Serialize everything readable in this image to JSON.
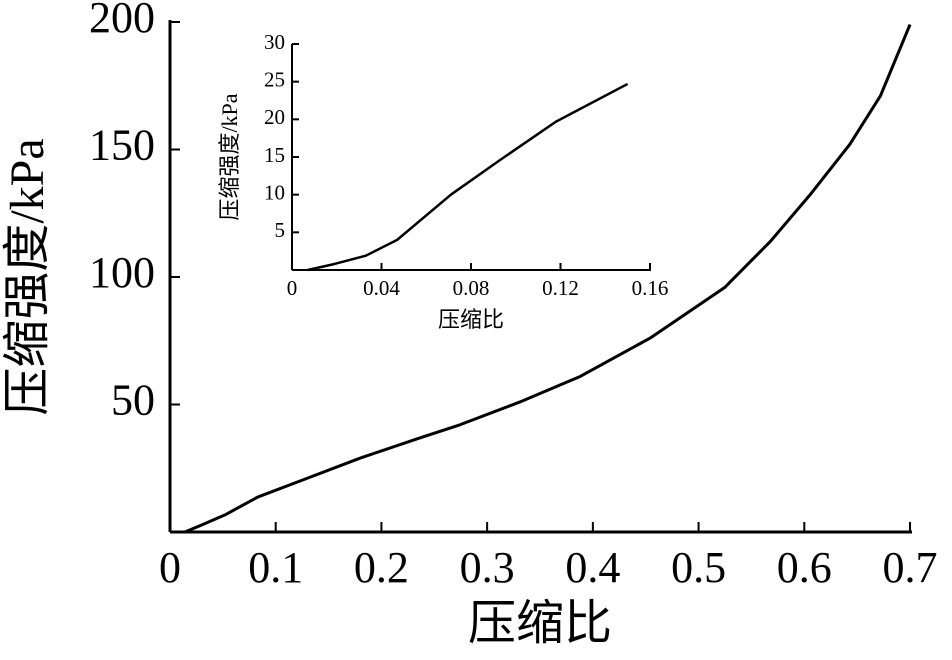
{
  "chart_data": [
    {
      "type": "line",
      "xlabel": "压缩比",
      "ylabel": "压缩强度/kPa",
      "x": [
        0.014,
        0.028,
        0.052,
        0.083,
        0.123,
        0.18,
        0.237,
        0.274,
        0.331,
        0.388,
        0.454,
        0.525,
        0.568,
        0.605,
        0.643,
        0.672,
        0.7
      ],
      "series": [
        {
          "color": "#000000",
          "values": [
            0,
            2.4,
            6.7,
            13.7,
            20,
            29,
            37,
            42,
            51,
            61,
            76,
            96,
            114,
            132,
            152,
            171,
            199
          ]
        }
      ],
      "xlim": [
        0,
        0.7
      ],
      "xticks": [
        0,
        0.1,
        0.2,
        0.3,
        0.4,
        0.5,
        0.6,
        0.7
      ],
      "ylim": [
        0,
        200
      ],
      "yticks": [
        50,
        100,
        150,
        200
      ]
    },
    {
      "type": "line",
      "xlabel": "压缩比",
      "ylabel": "压缩强度/kPa",
      "x": [
        0.007,
        0.019,
        0.033,
        0.047,
        0.055,
        0.071,
        0.093,
        0.118,
        0.15
      ],
      "series": [
        {
          "color": "#000000",
          "values": [
            0,
            0.8,
            1.9,
            4,
            6,
            10,
            14.6,
            19.7,
            24.7
          ]
        }
      ],
      "xlim": [
        0,
        0.16
      ],
      "xticks": [
        0,
        0.04,
        0.08,
        0.12,
        0.16
      ],
      "ylim": [
        0,
        30
      ],
      "yticks": [
        5,
        10,
        15,
        20,
        25,
        30
      ]
    }
  ]
}
